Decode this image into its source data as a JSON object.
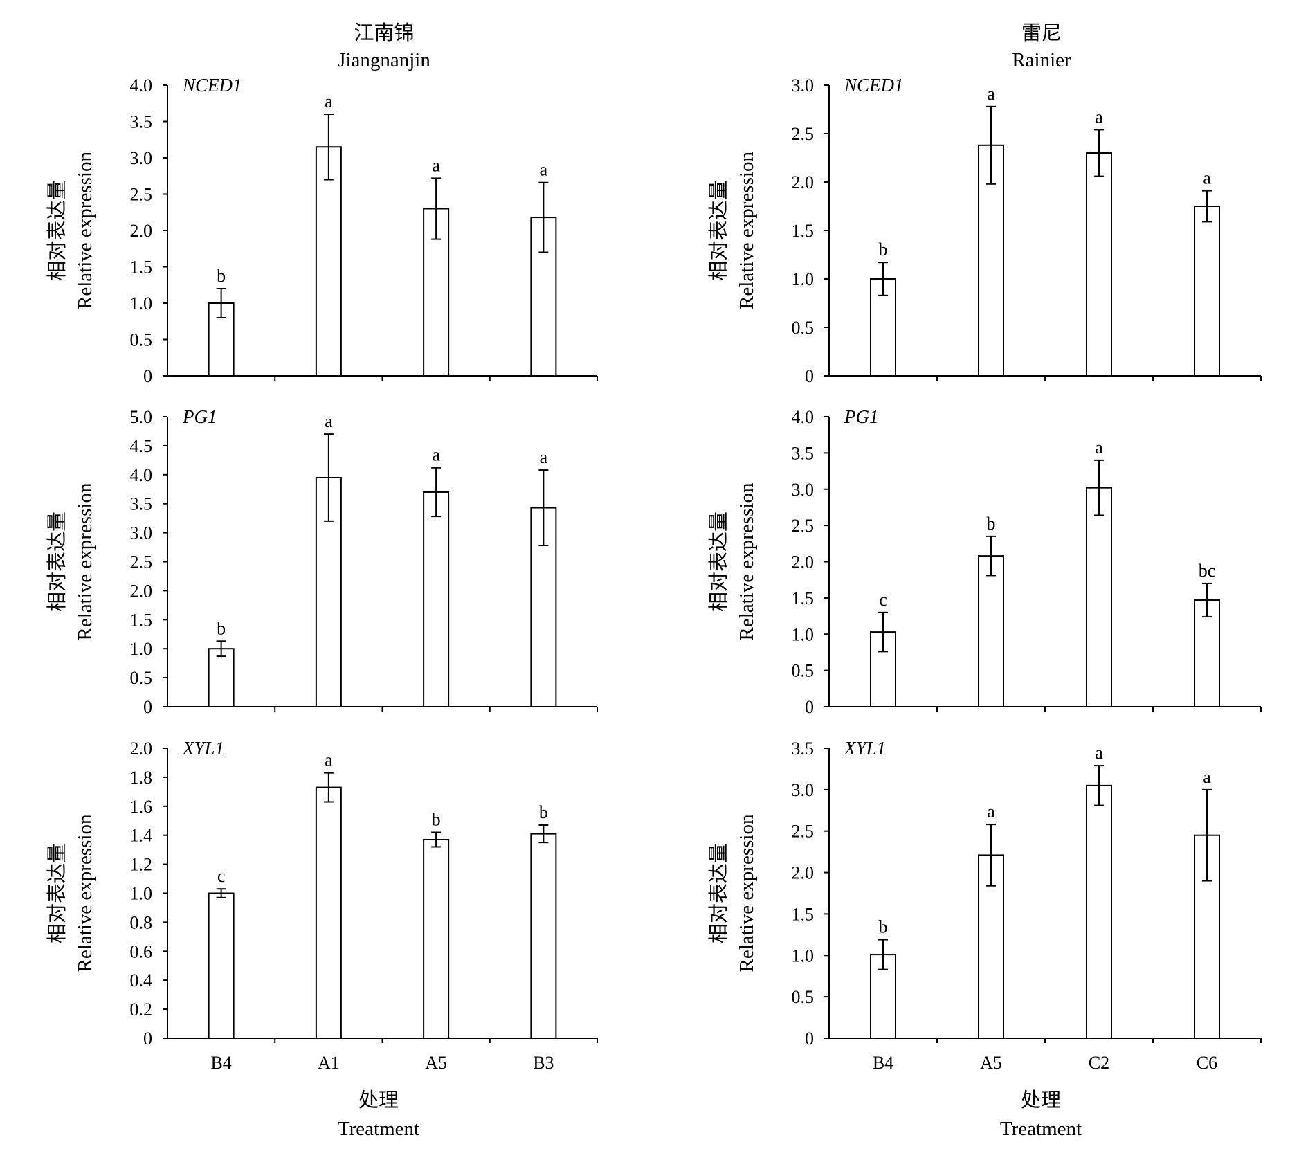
{
  "columns": [
    {
      "title_cn": "江南锦",
      "title_en": "Jiangnanjin"
    },
    {
      "title_cn": "雷尼",
      "title_en": "Rainier"
    }
  ],
  "x_title_cn": "处理",
  "x_title_en": "Treatment",
  "chart_data": [
    {
      "type": "bar",
      "gene": "NCED1",
      "column": 0,
      "row": 0,
      "ylabel_cn": "相对表达量",
      "ylabel_en": "Relative expression",
      "categories": [
        "B4",
        "A1",
        "A5",
        "B3"
      ],
      "values": [
        1.0,
        3.15,
        2.3,
        2.18
      ],
      "errors": [
        0.2,
        0.45,
        0.42,
        0.48
      ],
      "letters": [
        "b",
        "a",
        "a",
        "a"
      ],
      "ylim": [
        0,
        4.0
      ],
      "yticks": [
        "0",
        "0.5",
        "1.0",
        "1.5",
        "2.0",
        "2.5",
        "3.0",
        "3.5",
        "4.0"
      ]
    },
    {
      "type": "bar",
      "gene": "PG1",
      "column": 0,
      "row": 1,
      "ylabel_cn": "相对表达量",
      "ylabel_en": "Relative expression",
      "categories": [
        "B4",
        "A1",
        "A5",
        "B3"
      ],
      "values": [
        1.0,
        3.95,
        3.7,
        3.43
      ],
      "errors": [
        0.13,
        0.75,
        0.42,
        0.65
      ],
      "letters": [
        "b",
        "a",
        "a",
        "a"
      ],
      "ylim": [
        0,
        5.0
      ],
      "yticks": [
        "0",
        "0.5",
        "1.0",
        "1.5",
        "2.0",
        "2.5",
        "3.0",
        "3.5",
        "4.0",
        "4.5",
        "5.0"
      ]
    },
    {
      "type": "bar",
      "gene": "XYL1",
      "column": 0,
      "row": 2,
      "ylabel_cn": "相对表达量",
      "ylabel_en": "Relative expression",
      "categories": [
        "B4",
        "A1",
        "A5",
        "B3"
      ],
      "values": [
        1.0,
        1.73,
        1.37,
        1.41
      ],
      "errors": [
        0.03,
        0.1,
        0.05,
        0.06
      ],
      "letters": [
        "c",
        "a",
        "b",
        "b"
      ],
      "ylim": [
        0,
        2.0
      ],
      "yticks": [
        "0",
        "0.2",
        "0.4",
        "0.6",
        "0.8",
        "1.0",
        "1.2",
        "1.4",
        "1.6",
        "1.8",
        "2.0"
      ]
    },
    {
      "type": "bar",
      "gene": "NCED1",
      "column": 1,
      "row": 0,
      "ylabel_cn": "相对表达量",
      "ylabel_en": "Relative expression",
      "categories": [
        "B4",
        "A5",
        "C2",
        "C6"
      ],
      "values": [
        1.0,
        2.38,
        2.3,
        1.75
      ],
      "errors": [
        0.17,
        0.4,
        0.24,
        0.16
      ],
      "letters": [
        "b",
        "a",
        "a",
        "a"
      ],
      "ylim": [
        0,
        3.0
      ],
      "yticks": [
        "0",
        "0.5",
        "1.0",
        "1.5",
        "2.0",
        "2.5",
        "3.0"
      ]
    },
    {
      "type": "bar",
      "gene": "PG1",
      "column": 1,
      "row": 1,
      "ylabel_cn": "相对表达量",
      "ylabel_en": "Relative expression",
      "categories": [
        "B4",
        "A5",
        "C2",
        "C6"
      ],
      "values": [
        1.03,
        2.08,
        3.02,
        1.47
      ],
      "errors": [
        0.27,
        0.27,
        0.38,
        0.23
      ],
      "letters": [
        "c",
        "b",
        "a",
        "bc"
      ],
      "ylim": [
        0,
        4.0
      ],
      "yticks": [
        "0",
        "0.5",
        "1.0",
        "1.5",
        "2.0",
        "2.5",
        "3.0",
        "3.5",
        "4.0"
      ]
    },
    {
      "type": "bar",
      "gene": "XYL1",
      "column": 1,
      "row": 2,
      "ylabel_cn": "相对表达量",
      "ylabel_en": "Relative expression",
      "categories": [
        "B4",
        "A5",
        "C2",
        "C6"
      ],
      "values": [
        1.01,
        2.21,
        3.05,
        2.45
      ],
      "errors": [
        0.18,
        0.37,
        0.24,
        0.55
      ],
      "letters": [
        "b",
        "a",
        "a",
        "a"
      ],
      "ylim": [
        0,
        3.5
      ],
      "yticks": [
        "0",
        "0.5",
        "1.0",
        "1.5",
        "2.0",
        "2.5",
        "3.0",
        "3.5"
      ]
    }
  ]
}
